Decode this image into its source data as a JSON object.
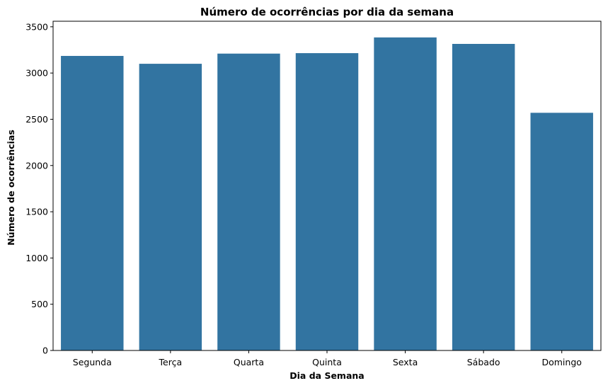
{
  "chart_data": {
    "type": "bar",
    "title": "Número de ocorrências por dia da semana",
    "xlabel": "Dia da Semana",
    "ylabel": "Número de ocorrências",
    "categories": [
      "Segunda",
      "Terça",
      "Quarta",
      "Quinta",
      "Sexta",
      "Sábado",
      "Domingo"
    ],
    "values": [
      3185,
      3100,
      3210,
      3215,
      3385,
      3315,
      2570
    ],
    "ylim": [
      0,
      3560
    ],
    "yticks": [
      0,
      500,
      1000,
      1500,
      2000,
      2500,
      3000,
      3500
    ],
    "grid": false,
    "bar_color": "#3274a1"
  }
}
